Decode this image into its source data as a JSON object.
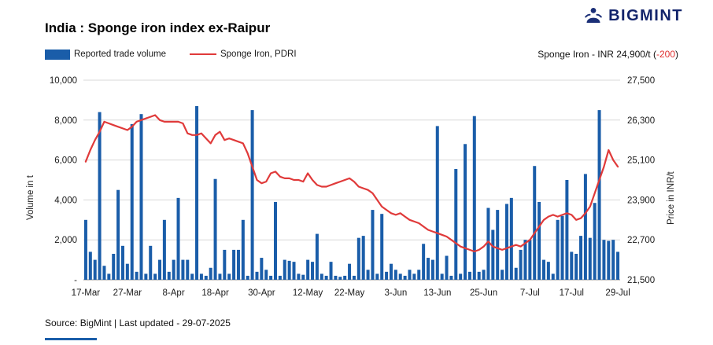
{
  "header": {
    "title": "India : Sponge iron index ex-Raipur",
    "brand": "BIGMINT"
  },
  "legend": {
    "volume_label": "Reported trade volume",
    "price_label": "Sponge Iron, PDRI",
    "price_note_prefix": "Sponge Iron - INR 24,900/t (",
    "price_note_change": "-200",
    "price_note_suffix": ")"
  },
  "footer": {
    "source": "Source: BigMint | Last updated - 29-07-2025"
  },
  "colors": {
    "bar": "#1a5da9",
    "line": "#e03a3a",
    "brand": "#13246b",
    "negative": "#e03131",
    "grid": "#d8d8d8",
    "axis": "#8f8f8f"
  },
  "chart_data": {
    "type": "bar",
    "title": "India : Sponge iron index ex-Raipur",
    "ylabel_left": "Volume in t",
    "ylabel_right": "Price in INR/t",
    "ylim_left": [
      0,
      10000
    ],
    "ylim_right": [
      21500,
      27500
    ],
    "grid": true,
    "legend_position": "top-left",
    "current_price": "INR 24,900/t",
    "price_change": -200,
    "left_ticks": [
      "10,000",
      "8,000",
      "6,000",
      "4,000",
      "2,000",
      "-"
    ],
    "right_ticks": [
      "27,500",
      "26,300",
      "25,100",
      "23,900",
      "22,700",
      "21,500"
    ],
    "x_tick_labels": [
      "17-Mar",
      "27-Mar",
      "8-Apr",
      "18-Apr",
      "30-Apr",
      "12-May",
      "22-May",
      "3-Jun",
      "13-Jun",
      "25-Jun",
      "7-Jul",
      "17-Jul",
      "29-Jul"
    ],
    "x_tick_indices": [
      0,
      9,
      19,
      28,
      38,
      48,
      57,
      67,
      76,
      86,
      96,
      105,
      115
    ],
    "series": [
      {
        "name": "Reported trade volume",
        "type": "bar",
        "axis": "left",
        "color": "#1a5da9",
        "values": [
          3000,
          1400,
          1000,
          8400,
          700,
          300,
          1300,
          4500,
          1700,
          800,
          7800,
          400,
          8300,
          300,
          1700,
          300,
          1000,
          3000,
          400,
          1000,
          4100,
          1000,
          1000,
          300,
          8700,
          300,
          200,
          600,
          5050,
          300,
          1500,
          300,
          1500,
          1500,
          3000,
          200,
          8500,
          400,
          1100,
          500,
          200,
          3900,
          200,
          1000,
          950,
          900,
          300,
          250,
          1000,
          900,
          2300,
          300,
          200,
          900,
          200,
          150,
          200,
          800,
          200,
          2100,
          2200,
          500,
          3500,
          300,
          3300,
          400,
          800,
          500,
          300,
          200,
          500,
          300,
          500,
          1800,
          1100,
          1000,
          7700,
          300,
          1200,
          200,
          5550,
          300,
          6800,
          400,
          8200,
          400,
          500,
          3600,
          2500,
          3500,
          500,
          3800,
          4100,
          600,
          1500,
          2000,
          2000,
          5700,
          3900,
          1000,
          900,
          300,
          3000,
          3200,
          5000,
          1400,
          1300,
          2200,
          5300,
          2100,
          3850,
          8500,
          2000,
          1950,
          2000,
          1400
        ]
      },
      {
        "name": "Sponge Iron, PDRI",
        "type": "line",
        "axis": "right",
        "color": "#e03a3a",
        "values": [
          25050,
          25400,
          25700,
          25950,
          26250,
          26200,
          26150,
          26100,
          26050,
          26000,
          26100,
          26250,
          26300,
          26350,
          26400,
          26450,
          26300,
          26250,
          26250,
          26250,
          26250,
          26200,
          25900,
          25850,
          25850,
          25900,
          25750,
          25600,
          25850,
          25950,
          25700,
          25750,
          25700,
          25650,
          25600,
          25300,
          24900,
          24500,
          24400,
          24450,
          24700,
          24750,
          24600,
          24550,
          24550,
          24500,
          24500,
          24450,
          24700,
          24500,
          24350,
          24300,
          24300,
          24350,
          24400,
          24450,
          24500,
          24550,
          24450,
          24300,
          24250,
          24200,
          24100,
          23900,
          23700,
          23600,
          23500,
          23450,
          23500,
          23400,
          23300,
          23250,
          23200,
          23100,
          23000,
          22950,
          22900,
          22850,
          22800,
          22700,
          22600,
          22500,
          22450,
          22400,
          22350,
          22400,
          22500,
          22650,
          22500,
          22450,
          22400,
          22450,
          22500,
          22550,
          22500,
          22600,
          22700,
          22900,
          23100,
          23300,
          23400,
          23450,
          23400,
          23450,
          23500,
          23450,
          23300,
          23350,
          23500,
          23700,
          24100,
          24500,
          24900,
          25400,
          25100,
          24900
        ]
      }
    ]
  }
}
